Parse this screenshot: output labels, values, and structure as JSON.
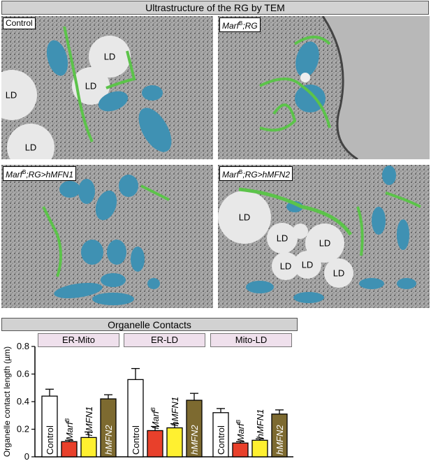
{
  "top_banner": "Ultrastructure of the RG by TEM",
  "panels": [
    {
      "label": "Control",
      "ld": [
        "LD",
        "LD",
        "LD",
        "LD"
      ]
    },
    {
      "label_gene": "Marf",
      "label_sup": "B",
      "label_rest": ";RG",
      "ld": []
    },
    {
      "label_gene": "Marf",
      "label_sup": "B",
      "label_rest": ";RG>hMFN1",
      "ld": []
    },
    {
      "label_gene": "Marf",
      "label_sup": "B",
      "label_rest": ";RG>hMFN2",
      "ld": [
        "LD",
        "LD",
        "LD",
        "LD",
        "LD",
        "LD"
      ]
    }
  ],
  "chart_banner": "Organelle Contacts",
  "chart_data": {
    "type": "bar",
    "ylabel": "Organelle contact length (µm)",
    "ylim": [
      0,
      0.8
    ],
    "yticks": [
      "0",
      "0.2",
      "0.4",
      "0.6",
      "0.8"
    ],
    "groups": [
      "ER-Mito",
      "ER-LD",
      "Mito-LD"
    ],
    "categories": [
      "Control",
      "Marf",
      "hMFN1",
      "hMFN2"
    ],
    "cat_sup": [
      "",
      "B",
      "",
      ""
    ],
    "colors": [
      "#ffffff",
      "#e8402b",
      "#fff030",
      "#7d6a30"
    ],
    "series": [
      {
        "values": [
          0.44,
          0.11,
          0.14,
          0.42
        ],
        "errors": [
          0.05,
          0.01,
          0.04,
          0.03
        ]
      },
      {
        "values": [
          0.56,
          0.19,
          0.21,
          0.41
        ],
        "errors": [
          0.08,
          0.03,
          0.03,
          0.05
        ]
      },
      {
        "values": [
          0.32,
          0.1,
          0.12,
          0.31
        ],
        "errors": [
          0.03,
          0.01,
          0.01,
          0.03
        ]
      }
    ]
  }
}
